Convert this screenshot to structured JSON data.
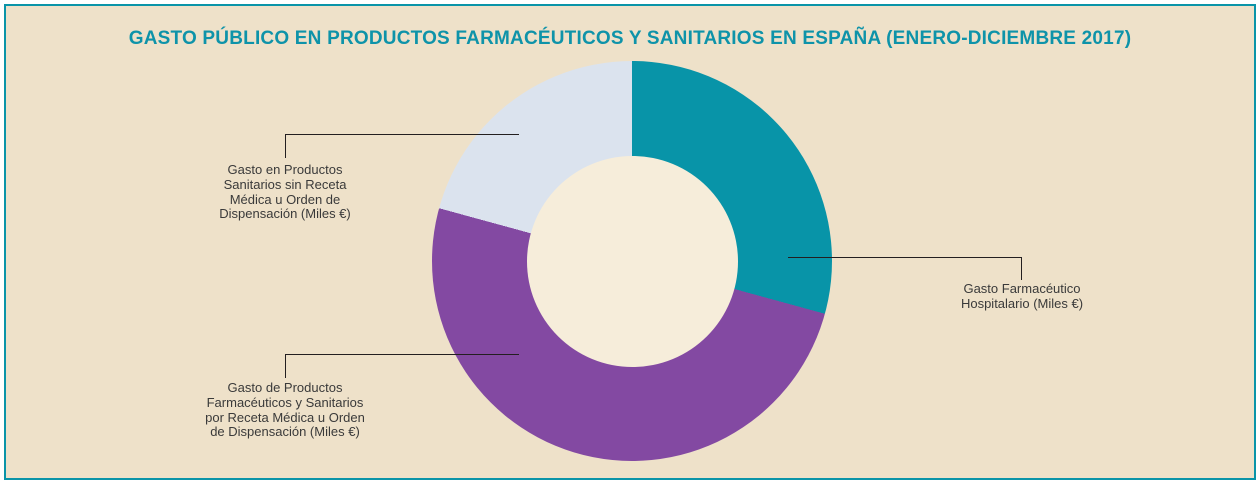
{
  "title": "GASTO PÚBLICO EN PRODUCTOS FARMACÉUTICOS Y SANITARIOS EN ESPAÑA (ENERO-DICIEMBRE 2017)",
  "colors": {
    "background": "#eee1c9",
    "border": "#0a94a8",
    "title": "#0e93a9",
    "label_text": "#3a3a3a",
    "connector": "#231f20",
    "hole": "#f6edda",
    "teal": "#0894a8",
    "purple": "#8349a2",
    "light_gray": "#dbe3ee"
  },
  "labels": {
    "hospitalario": {
      "text": "Gasto Farmacéutico\nHospitalario (Miles €)"
    },
    "receta": {
      "text": "Gasto de Productos\nFarmacéuticos y Sanitarios\npor Receta Médica u Orden\nde Dispensación (Miles €)"
    },
    "sanitarios_sin_receta": {
      "text": "Gasto en Productos\nSanitarios sin Receta\nMédica u Orden de\nDispensación (Miles €)"
    }
  },
  "chart_data": {
    "type": "pie",
    "variant": "donut",
    "title": "GASTO PÚBLICO EN PRODUCTOS FARMACÉUTICOS Y SANITARIOS EN ESPAÑA (ENERO-DICIEMBRE 2017)",
    "unit": "Miles €",
    "values_labeled_on_chart": false,
    "start_angle_deg_from_top": 0,
    "direction": "clockwise",
    "inner_radius_ratio": 0.53,
    "hole_color": "#f6edda",
    "legend_position": "callout-labels",
    "segments": [
      {
        "label": "Gasto Farmacéutico Hospitalario (Miles €)",
        "color": "#0894a8",
        "start_deg": 0,
        "end_deg": 105.3,
        "percent_estimated": 29.3
      },
      {
        "label": "Gasto de Productos Farmacéuticos y Sanitarios por Receta Médica u Orden de Dispensación (Miles €)",
        "color": "#8349a2",
        "start_deg": 105.3,
        "end_deg": 285.3,
        "percent_estimated": 50.0
      },
      {
        "label": "Gasto en Productos Sanitarios sin Receta Médica u Orden de Dispensación (Miles €)",
        "color": "#dbe3ee",
        "start_deg": 285.3,
        "end_deg": 360,
        "percent_estimated": 20.7
      }
    ]
  }
}
